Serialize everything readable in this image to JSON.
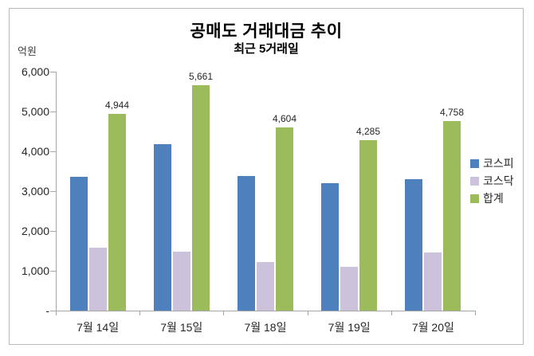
{
  "window": {
    "background": "#ffffff",
    "frame_border_color": "#b9b9b9"
  },
  "chart_data": {
    "type": "bar",
    "title": "공매도 거래대금 추이",
    "subtitle": "최근 5거래일",
    "unit_label": "억원",
    "categories": [
      "7월 14일",
      "7월 15일",
      "7월 18일",
      "7월 19일",
      "7월 20일"
    ],
    "series": [
      {
        "name": "코스피",
        "color": "#4E80BD",
        "values": [
          3369,
          4185,
          3388,
          3190,
          3290
        ],
        "show_data_labels": false
      },
      {
        "name": "코스닥",
        "color": "#CCC2DC",
        "values": [
          1575,
          1476,
          1216,
          1095,
          1468
        ],
        "show_data_labels": false
      },
      {
        "name": "합계",
        "color": "#9CBB5B",
        "values": [
          4944,
          5661,
          4604,
          4285,
          4758
        ],
        "show_data_labels": true
      }
    ],
    "data_labels_total": [
      "4,944",
      "5,661",
      "4,604",
      "4,285",
      "4,758"
    ],
    "ylim": [
      0,
      6000
    ],
    "ytick_interval": 1000,
    "ytick_labels": [
      "-",
      "1,000",
      "2,000",
      "3,000",
      "4,000",
      "5,000",
      "6,000"
    ],
    "gridlines": false,
    "legend_position": "right",
    "axis_color": "#A6A6A6"
  }
}
